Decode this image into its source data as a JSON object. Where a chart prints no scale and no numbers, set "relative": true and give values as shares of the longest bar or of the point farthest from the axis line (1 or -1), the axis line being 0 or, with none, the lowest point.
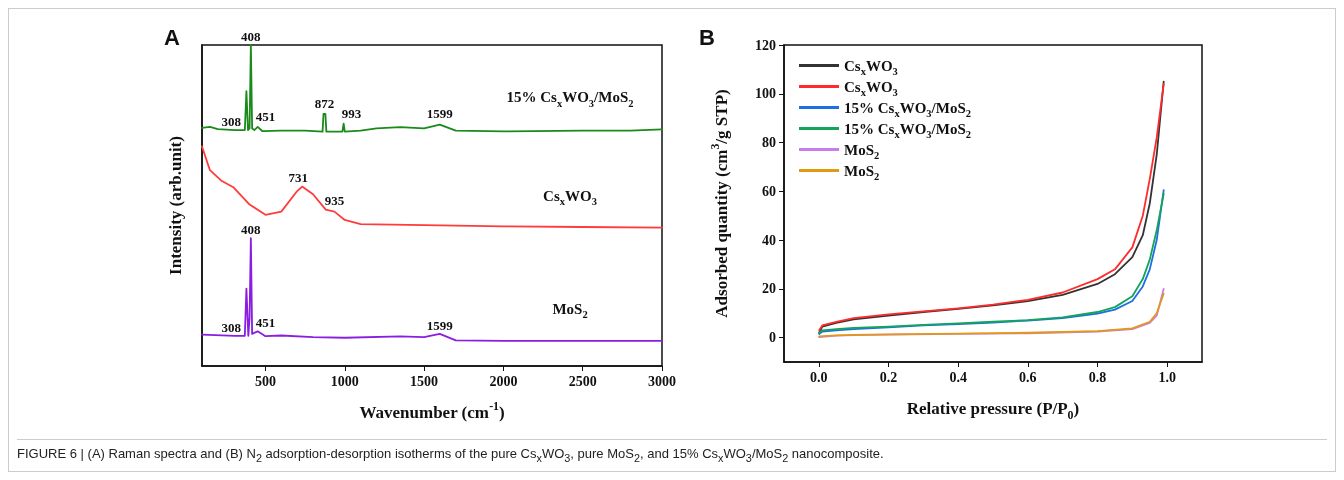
{
  "chart_data": [
    {
      "type": "line",
      "title": "A",
      "xlabel": "Wavenumber (cm$^{-1}$)",
      "ylabel": "Intensity (arb.unit)",
      "relative": true,
      "xlim": [
        100,
        3000
      ],
      "xticks": [
        500,
        1000,
        1500,
        2000,
        2500,
        3000
      ],
      "grid": false,
      "legend": false,
      "marker": "none",
      "line_style": "solid",
      "series": [
        {
          "name": "15% Cs$_{x}$WO$_{3}$/MoS$_{2}$",
          "color": "#1a8a1a",
          "x": [
            100,
            150,
            200,
            308,
            370,
            380,
            390,
            400,
            408,
            416,
            430,
            451,
            480,
            600,
            750,
            860,
            866,
            878,
            884,
            985,
            993,
            1000,
            1100,
            1200,
            1350,
            1500,
            1599,
            1700,
            2000,
            2500,
            2800,
            3000
          ],
          "values": [
            0.742,
            0.745,
            0.738,
            0.735,
            0.735,
            0.856,
            0.735,
            0.74,
            1.0,
            0.74,
            0.735,
            0.745,
            0.732,
            0.733,
            0.733,
            0.73,
            0.785,
            0.785,
            0.73,
            0.73,
            0.755,
            0.73,
            0.733,
            0.74,
            0.744,
            0.74,
            0.752,
            0.733,
            0.731,
            0.733,
            0.733,
            0.737
          ]
        },
        {
          "name": "Cs$_{x}$WO$_{3}$",
          "color": "#ff3b3b",
          "x": [
            100,
            150,
            220,
            300,
            400,
            500,
            600,
            700,
            731,
            800,
            880,
            935,
            1000,
            1100,
            1500,
            2000,
            2500,
            3000
          ],
          "values": [
            0.684,
            0.61,
            0.578,
            0.556,
            0.503,
            0.471,
            0.481,
            0.545,
            0.559,
            0.535,
            0.487,
            0.481,
            0.455,
            0.442,
            0.439,
            0.435,
            0.433,
            0.431
          ]
        },
        {
          "name": "MoS$_{2}$",
          "color": "#8a1ee0",
          "x": [
            100,
            308,
            370,
            380,
            392,
            400,
            408,
            416,
            451,
            500,
            600,
            800,
            1000,
            1350,
            1500,
            1599,
            1700,
            2000,
            3000
          ],
          "values": [
            0.098,
            0.094,
            0.094,
            0.241,
            0.094,
            0.15,
            0.398,
            0.1,
            0.108,
            0.093,
            0.095,
            0.09,
            0.088,
            0.092,
            0.09,
            0.1,
            0.08,
            0.078,
            0.078
          ]
        }
      ],
      "annotations": [
        {
          "text": "308",
          "x": 308,
          "y": 0.735
        },
        {
          "text": "408",
          "x": 408,
          "y": 1.0
        },
        {
          "text": "451",
          "x": 451,
          "y": 0.75
        },
        {
          "text": "872",
          "x": 872,
          "y": 0.79
        },
        {
          "text": "993",
          "x": 993,
          "y": 0.76
        },
        {
          "text": "1599",
          "x": 1599,
          "y": 0.76
        },
        {
          "text": "731",
          "x": 731,
          "y": 0.56
        },
        {
          "text": "935",
          "x": 935,
          "y": 0.49
        },
        {
          "text": "408",
          "x": 408,
          "y": 0.4
        },
        {
          "text": "308",
          "x": 308,
          "y": 0.094
        },
        {
          "text": "451",
          "x": 451,
          "y": 0.11
        },
        {
          "text": "1599",
          "x": 1599,
          "y": 0.1
        },
        "FIGURE 6 | (A) Raman spectra and (B) N$_{2}$ adsorption-desorption isotherms of the pure Cs$_{x}$WO$_{3}$, pure MoS$_{2}$, and 15% Cs$_{x}$WO$_{3}$/MoS$_{2}$ nanocomposite."
      ]
    },
    {
      "type": "line",
      "title": "B",
      "xlabel": "Relative pressure (P/P$_{0}$)",
      "ylabel": "Adsorbed quantity (cm$^{3}$/g STP)",
      "xlim": [
        -0.1,
        1.1
      ],
      "xticks": [
        {
          "value": 0,
          "label": "0.0"
        },
        0.2,
        0.4,
        0.6,
        0.8,
        {
          "value": 1,
          "label": "1.0"
        }
      ],
      "ylim": [
        -10,
        120
      ],
      "yticks": [
        0,
        20,
        40,
        60,
        80,
        100,
        120
      ],
      "grid": false,
      "legend": "top left",
      "marker": "none",
      "line_style": "solid",
      "series": [
        {
          "name": "Cs$_{x}$WO$_{3}$",
          "color": "#333333",
          "x": [
            0.001,
            0.01,
            0.05,
            0.1,
            0.2,
            0.3,
            0.4,
            0.5,
            0.6,
            0.7,
            0.8,
            0.85,
            0.9,
            0.93,
            0.95,
            0.97,
            0.99
          ],
          "values": [
            2,
            4.5,
            6,
            7.5,
            9,
            10.5,
            11.8,
            13.2,
            15,
            17.5,
            22,
            26,
            33,
            42,
            55,
            75,
            105
          ]
        },
        {
          "name": "Cs$_{x}$WO$_{3}$",
          "color": "#ff2a2a",
          "x": [
            0.001,
            0.01,
            0.05,
            0.1,
            0.2,
            0.3,
            0.4,
            0.5,
            0.6,
            0.7,
            0.8,
            0.85,
            0.9,
            0.93,
            0.95,
            0.97,
            0.99
          ],
          "values": [
            3,
            5,
            6.5,
            8,
            9.5,
            10.8,
            12,
            13.5,
            15.5,
            18.5,
            24,
            28,
            37,
            50,
            65,
            82,
            104
          ]
        },
        {
          "name": "15% Cs$_{x}$WO$_{3}$/MoS$_{2}$",
          "color": "#1f6fe0",
          "x": [
            0.001,
            0.01,
            0.05,
            0.1,
            0.2,
            0.3,
            0.4,
            0.5,
            0.6,
            0.7,
            0.8,
            0.85,
            0.9,
            0.93,
            0.95,
            0.97,
            0.99
          ],
          "values": [
            1.5,
            2.5,
            3,
            3.5,
            4.2,
            5,
            5.5,
            6.2,
            7,
            8,
            9.8,
            11.5,
            15,
            21,
            28,
            40,
            60.5
          ]
        },
        {
          "name": "15% Cs$_{x}$WO$_{3}$/MoS$_{2}$",
          "color": "#12a55a",
          "x": [
            0.001,
            0.01,
            0.05,
            0.1,
            0.2,
            0.3,
            0.4,
            0.5,
            0.6,
            0.7,
            0.8,
            0.85,
            0.9,
            0.93,
            0.95,
            0.97,
            0.99
          ],
          "values": [
            2,
            3,
            3.5,
            4,
            4.5,
            5.2,
            5.8,
            6.5,
            7.2,
            8.3,
            10.5,
            12.5,
            17,
            24,
            32,
            44,
            59
          ]
        },
        {
          "name": "MoS$_{2}$",
          "color": "#c77dea",
          "x": [
            0.001,
            0.05,
            0.1,
            0.2,
            0.4,
            0.6,
            0.8,
            0.9,
            0.95,
            0.97,
            0.99
          ],
          "values": [
            0.2,
            0.8,
            1,
            1.2,
            1.5,
            1.8,
            2.5,
            3.5,
            6,
            9,
            20
          ]
        },
        {
          "name": "MoS$_{2}$",
          "color": "#e39a12",
          "x": [
            0.001,
            0.05,
            0.1,
            0.2,
            0.4,
            0.6,
            0.8,
            0.9,
            0.95,
            0.97,
            0.99
          ],
          "values": [
            0.5,
            0.9,
            1.1,
            1.3,
            1.6,
            2,
            2.7,
            3.8,
            6.5,
            10,
            18
          ]
        }
      ]
    }
  ]
}
